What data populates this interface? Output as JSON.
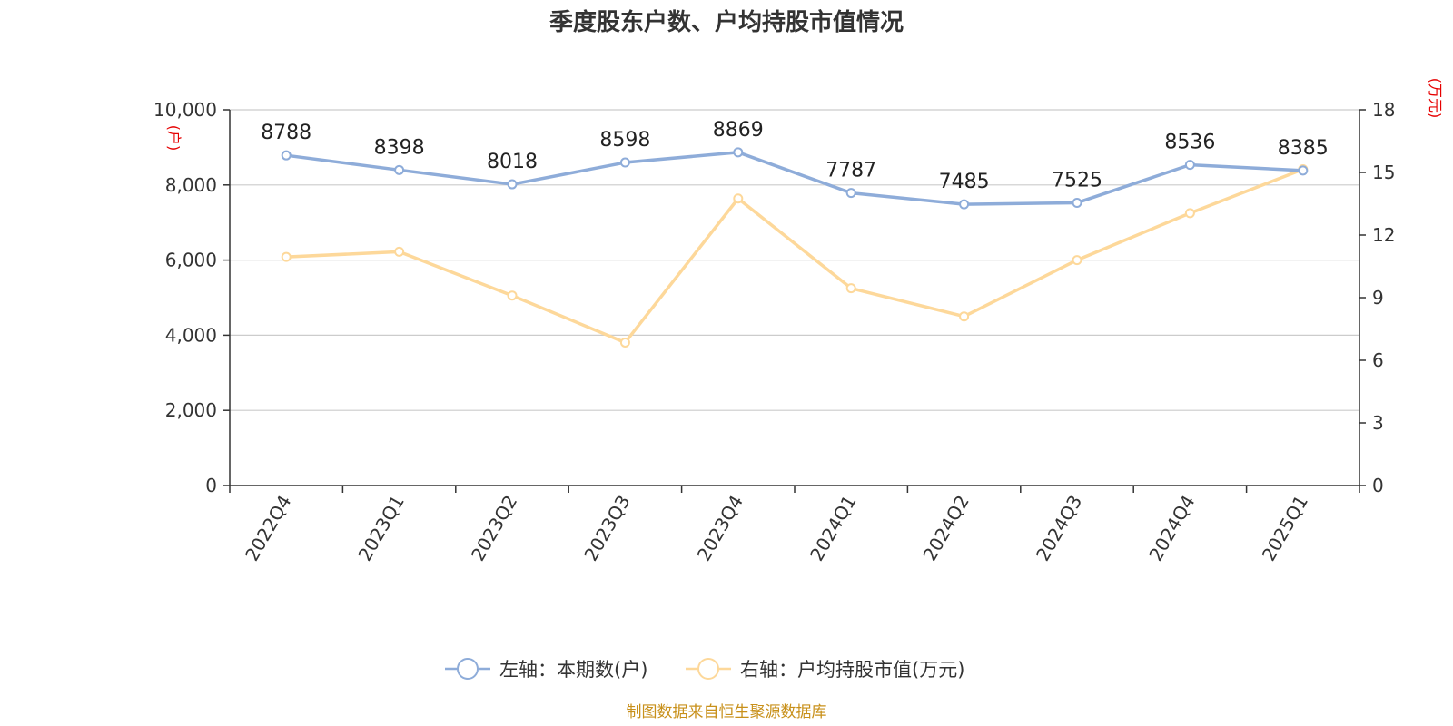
{
  "chart_data": {
    "type": "line",
    "title": "季度股东户数、户均持股市值情况",
    "categories": [
      "2022Q4",
      "2023Q1",
      "2023Q2",
      "2023Q3",
      "2023Q4",
      "2024Q1",
      "2024Q2",
      "2024Q3",
      "2024Q4",
      "2025Q1"
    ],
    "series": [
      {
        "name": "左轴：本期数(户)",
        "axis": "left",
        "color": "#8eacd9",
        "values": [
          8788,
          8398,
          8018,
          8598,
          8869,
          7787,
          7485,
          7525,
          8536,
          8385
        ],
        "show_labels": true
      },
      {
        "name": "右轴：户均持股市值(万元)",
        "axis": "right",
        "color": "#fdd89a",
        "values": [
          10.95,
          11.2,
          9.1,
          6.85,
          13.75,
          9.45,
          8.1,
          10.8,
          13.05,
          15.15
        ],
        "show_labels": false
      }
    ],
    "y_left": {
      "unit": "(户)",
      "ylim": [
        0,
        10000
      ],
      "ticks": [
        0,
        2000,
        4000,
        6000,
        8000,
        10000
      ],
      "tick_labels": [
        "0",
        "2,000",
        "4,000",
        "6,000",
        "8,000",
        "10,000"
      ]
    },
    "y_right": {
      "unit": "(万元)",
      "ylim": [
        0,
        18
      ],
      "ticks": [
        0,
        3,
        6,
        9,
        12,
        15,
        18
      ],
      "tick_labels": [
        "0",
        "3",
        "6",
        "9",
        "12",
        "15",
        "18"
      ]
    },
    "grid": true,
    "legend_position": "bottom-center",
    "source": "制图数据来自恒生聚源数据库"
  }
}
